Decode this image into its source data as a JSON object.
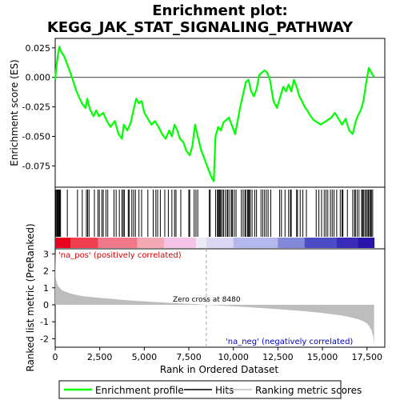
{
  "chart_data": {
    "type": "line",
    "title_line1": "Enrichment plot:",
    "title_line2": "KEGG_JAK_STAT_SIGNALING_PATHWAY",
    "top_panel": {
      "ylabel": "Enrichment score (ES)",
      "ylim": [
        -0.093,
        0.033
      ],
      "yticks": [
        0.025,
        0.0,
        -0.025,
        -0.05,
        -0.075
      ],
      "ytick_labels": [
        "0.025",
        "0.000",
        "-0.025",
        "-0.050",
        "-0.075"
      ],
      "series": [
        {
          "name": "Enrichment profile",
          "color": "#00ff00",
          "x": [
            0,
            60,
            140,
            240,
            320,
            500,
            700,
            900,
            1200,
            1500,
            1700,
            1800,
            1950,
            2150,
            2300,
            2450,
            2700,
            2900,
            3100,
            3350,
            3550,
            3750,
            3850,
            4050,
            4250,
            4450,
            4550,
            4700,
            4850,
            5000,
            5200,
            5400,
            5600,
            5800,
            6000,
            6200,
            6400,
            6550,
            6700,
            6850,
            7000,
            7200,
            7350,
            7550,
            7700,
            7850,
            8000,
            8200,
            8400,
            8600,
            8750,
            8900,
            9000,
            9150,
            9300,
            9450,
            9600,
            9750,
            9900,
            10100,
            10250,
            10400,
            10550,
            10700,
            10850,
            11000,
            11150,
            11300,
            11450,
            11600,
            11750,
            11900,
            12050,
            12250,
            12450,
            12600,
            12800,
            12950,
            13100,
            13250,
            13400,
            13550,
            13700,
            13850,
            14000,
            14150,
            14300,
            14500,
            14700,
            14900,
            15100,
            15300,
            15500,
            15700,
            15900,
            16100,
            16300,
            16500,
            16700,
            16850,
            17000,
            17150,
            17300,
            17450,
            17600,
            17750,
            17900
          ],
          "y": [
            -0.002,
            0.008,
            0.018,
            0.026,
            0.022,
            0.018,
            0.01,
            0.002,
            -0.012,
            -0.022,
            -0.026,
            -0.018,
            -0.027,
            -0.033,
            -0.028,
            -0.033,
            -0.03,
            -0.037,
            -0.042,
            -0.037,
            -0.048,
            -0.052,
            -0.04,
            -0.045,
            -0.038,
            -0.024,
            -0.018,
            -0.022,
            -0.02,
            -0.03,
            -0.035,
            -0.04,
            -0.037,
            -0.042,
            -0.048,
            -0.052,
            -0.045,
            -0.05,
            -0.04,
            -0.045,
            -0.052,
            -0.055,
            -0.062,
            -0.066,
            -0.058,
            -0.04,
            -0.05,
            -0.062,
            -0.07,
            -0.078,
            -0.084,
            -0.088,
            -0.05,
            -0.042,
            -0.045,
            -0.038,
            -0.036,
            -0.034,
            -0.04,
            -0.048,
            -0.036,
            -0.024,
            -0.014,
            -0.004,
            -0.002,
            -0.012,
            -0.016,
            -0.01,
            0.002,
            0.004,
            0.006,
            0.004,
            -0.002,
            -0.02,
            -0.026,
            -0.018,
            -0.008,
            -0.012,
            -0.006,
            -0.012,
            -0.002,
            -0.008,
            -0.016,
            -0.02,
            -0.025,
            -0.028,
            -0.032,
            -0.036,
            -0.038,
            -0.04,
            -0.038,
            -0.036,
            -0.034,
            -0.03,
            -0.035,
            -0.04,
            -0.035,
            -0.045,
            -0.048,
            -0.038,
            -0.032,
            -0.028,
            -0.02,
            -0.005,
            0.008,
            0.004,
            0.0
          ]
        }
      ]
    },
    "hits_panel": {
      "series_name": "Hits",
      "hit_positions": [
        30,
        80,
        110,
        150,
        190,
        230,
        260,
        300,
        680,
        1250,
        1520,
        1750,
        1820,
        1900,
        2200,
        2400,
        2480,
        2620,
        2700,
        2850,
        2950,
        3300,
        3420,
        3600,
        3750,
        3820,
        3880,
        4100,
        4150,
        4300,
        4400,
        4500,
        4700,
        4850,
        5200,
        5500,
        5650,
        5750,
        5900,
        6150,
        6350,
        6550,
        6700,
        6780,
        7050,
        7500,
        7550,
        7800,
        7900,
        8000,
        8650,
        8700,
        9000,
        9100,
        9150,
        9200,
        9250,
        9300,
        9380,
        9450,
        9550,
        9650,
        9700,
        9800,
        9900,
        9950,
        10050,
        10150,
        10450,
        10550,
        10650,
        10700,
        10800,
        10850,
        10900,
        10950,
        11050,
        11200,
        11300,
        11550,
        11650,
        11750,
        11850,
        11950,
        12100,
        12600,
        12700,
        12900,
        13100,
        13200,
        13250,
        13550,
        13600,
        13750,
        13900,
        14100,
        14650,
        14800,
        14950,
        15100,
        15200,
        15300,
        15450,
        15550,
        15650,
        15800,
        16000,
        16100,
        16150,
        16400,
        16700,
        16800,
        16850,
        16950,
        17050,
        17200,
        17250,
        17300,
        17380,
        17450,
        17520,
        17580,
        17650,
        17700,
        17750,
        17820
      ]
    },
    "heatmap": {
      "label_pos": "'na_pos' (positively correlated)",
      "label_neg": "'na_neg' (negatively correlated)",
      "colors": [
        "#e8001f",
        "#f04050",
        "#f07888",
        "#f4a8b4",
        "#f4c4e8",
        "#dcd8f4",
        "#b4b8ec",
        "#8488d8",
        "#4c4cc4",
        "#2814a8"
      ],
      "boundaries": [
        0,
        850,
        2400,
        4600,
        6100,
        7900,
        8480,
        10000,
        12500,
        14000,
        15800,
        17000,
        17900
      ]
    },
    "bottom_panel": {
      "ylabel": "Ranked list metric (PreRanked)",
      "xlabel": "Rank in Ordered Dataset",
      "ylim": [
        -2.5,
        3.3
      ],
      "yticks": [
        3,
        2,
        1,
        0,
        -1,
        -2
      ],
      "ytick_labels": [
        "3",
        "2",
        "1",
        "0",
        "-1",
        "-2"
      ],
      "xlim": [
        0,
        18500
      ],
      "xticks": [
        0,
        2500,
        5000,
        7500,
        10000,
        12500,
        15000,
        17500
      ],
      "xtick_labels": [
        "0",
        "2,500",
        "5,000",
        "7,500",
        "10,000",
        "12,500",
        "15,000",
        "17,500"
      ],
      "zero_cross_label": "Zero cross at 8480",
      "zero_cross": 8480,
      "series_name": "Ranking metric scores",
      "metric_x": [
        0,
        30,
        100,
        200,
        400,
        700,
        1000,
        1500,
        2000,
        3000,
        4000,
        5000,
        6000,
        7000,
        8000,
        8480,
        9000,
        10000,
        11000,
        12000,
        13000,
        14000,
        15000,
        16000,
        16500,
        17000,
        17300,
        17500,
        17650,
        17750,
        17850,
        17900
      ],
      "metric_y": [
        3.1,
        1.6,
        1.25,
        1.05,
        0.85,
        0.72,
        0.62,
        0.52,
        0.46,
        0.36,
        0.27,
        0.2,
        0.14,
        0.08,
        0.03,
        0.0,
        -0.03,
        -0.09,
        -0.15,
        -0.22,
        -0.3,
        -0.38,
        -0.48,
        -0.62,
        -0.72,
        -0.85,
        -0.97,
        -1.1,
        -1.3,
        -1.5,
        -1.85,
        -2.35
      ]
    },
    "legend": [
      {
        "label": "Enrichment profile",
        "color": "#00ff00"
      },
      {
        "label": "Hits",
        "color": "#000000"
      },
      {
        "label": "Ranking metric scores",
        "color": "#bdbdbd"
      }
    ]
  }
}
